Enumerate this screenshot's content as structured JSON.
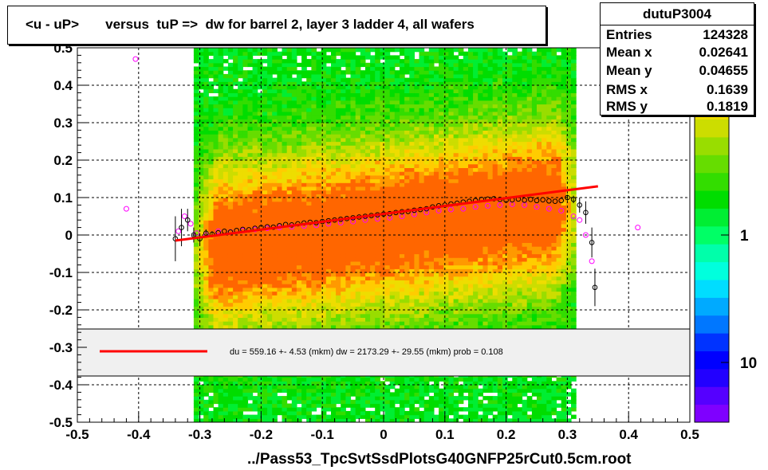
{
  "chart_data": {
    "type": "heatmap",
    "title": "<u - uP>       versus  tuP =>  dw for barrel 2, layer 3 ladder 4, all wafers",
    "xlim": [
      -0.5,
      0.5
    ],
    "ylim": [
      -0.5,
      0.5
    ],
    "x_ticks": [
      "-0.5",
      "-0.4",
      "-0.3",
      "-0.2",
      "-0.1",
      "0",
      "0.1",
      "0.2",
      "0.3",
      "0.4",
      "0.5"
    ],
    "y_ticks": [
      "-0.5",
      "-0.4",
      "-0.3",
      "-0.2",
      "-0.1",
      "0",
      "0.1",
      "0.2",
      "0.3",
      "0.4",
      "0.5"
    ],
    "grid": true,
    "colorbar": {
      "scale": "log",
      "labels": [
        "1",
        "10"
      ],
      "colors": [
        "#7f00ff",
        "#5500ff",
        "#2200ff",
        "#0000ff",
        "#0033ff",
        "#0077ff",
        "#00aaff",
        "#00ddff",
        "#00ffdd",
        "#00ffaa",
        "#00ff66",
        "#00ee33",
        "#00dd00",
        "#33dd00",
        "#66dd00",
        "#99dd00",
        "#ccdd00",
        "#eedd00",
        "#ffcc00",
        "#ff9900",
        "#ff6600"
      ]
    },
    "density": {
      "x_range": [
        -0.31,
        0.31
      ],
      "y_range": [
        -0.5,
        0.5
      ],
      "trend_slope": 0.2,
      "note_band_center": 0.02
    },
    "fit_line": {
      "x": [
        -0.34,
        0.35
      ],
      "y": [
        -0.015,
        0.13
      ],
      "color": "#ff0000"
    },
    "profile_black": {
      "x": [
        -0.34,
        -0.33,
        -0.32,
        -0.31,
        -0.3,
        -0.29,
        -0.28,
        -0.27,
        -0.26,
        -0.25,
        -0.24,
        -0.23,
        -0.22,
        -0.21,
        -0.2,
        -0.19,
        -0.18,
        -0.17,
        -0.16,
        -0.15,
        -0.14,
        -0.13,
        -0.12,
        -0.11,
        -0.1,
        -0.09,
        -0.08,
        -0.07,
        -0.06,
        -0.05,
        -0.04,
        -0.03,
        -0.02,
        -0.01,
        0.0,
        0.01,
        0.02,
        0.03,
        0.04,
        0.05,
        0.06,
        0.07,
        0.08,
        0.09,
        0.1,
        0.11,
        0.12,
        0.13,
        0.14,
        0.15,
        0.16,
        0.17,
        0.18,
        0.19,
        0.2,
        0.21,
        0.22,
        0.23,
        0.24,
        0.25,
        0.26,
        0.27,
        0.28,
        0.29,
        0.3,
        0.31,
        0.32,
        0.33,
        0.34,
        0.345
      ],
      "y": [
        -0.01,
        0.02,
        0.04,
        0.0,
        -0.01,
        0.005,
        0.002,
        0.006,
        0.01,
        0.008,
        0.012,
        0.015,
        0.014,
        0.018,
        0.02,
        0.022,
        0.021,
        0.025,
        0.028,
        0.027,
        0.03,
        0.032,
        0.034,
        0.033,
        0.036,
        0.038,
        0.04,
        0.042,
        0.044,
        0.046,
        0.048,
        0.05,
        0.052,
        0.054,
        0.056,
        0.057,
        0.06,
        0.062,
        0.063,
        0.066,
        0.068,
        0.07,
        0.075,
        0.078,
        0.08,
        0.083,
        0.085,
        0.088,
        0.09,
        0.092,
        0.095,
        0.096,
        0.097,
        0.095,
        0.093,
        0.094,
        0.096,
        0.093,
        0.095,
        0.092,
        0.094,
        0.091,
        0.09,
        0.092,
        0.1,
        0.095,
        0.08,
        0.06,
        -0.02,
        -0.14
      ],
      "err": [
        0.06,
        0.05,
        0.03,
        0.02,
        0.015,
        0.01,
        0.008,
        0.006,
        0.005,
        0.005,
        0.004,
        0.004,
        0.004,
        0.004,
        0.004,
        0.004,
        0.004,
        0.004,
        0.004,
        0.004,
        0.004,
        0.004,
        0.004,
        0.004,
        0.004,
        0.004,
        0.004,
        0.004,
        0.004,
        0.004,
        0.004,
        0.004,
        0.004,
        0.004,
        0.004,
        0.004,
        0.004,
        0.004,
        0.004,
        0.004,
        0.004,
        0.004,
        0.004,
        0.004,
        0.004,
        0.004,
        0.004,
        0.004,
        0.004,
        0.004,
        0.004,
        0.004,
        0.004,
        0.004,
        0.004,
        0.004,
        0.004,
        0.004,
        0.004,
        0.004,
        0.004,
        0.004,
        0.005,
        0.006,
        0.008,
        0.01,
        0.02,
        0.03,
        0.04,
        0.05
      ]
    },
    "profile_magenta": {
      "x": [
        -0.42,
        -0.405,
        -0.335,
        -0.325,
        -0.315,
        -0.305,
        -0.29,
        -0.27,
        -0.25,
        -0.23,
        -0.21,
        -0.19,
        -0.17,
        -0.15,
        -0.13,
        -0.11,
        -0.09,
        -0.07,
        -0.05,
        -0.03,
        -0.01,
        0.01,
        0.03,
        0.05,
        0.07,
        0.09,
        0.11,
        0.13,
        0.15,
        0.17,
        0.19,
        0.21,
        0.23,
        0.25,
        0.27,
        0.29,
        0.31,
        0.32,
        0.33,
        0.34,
        0.415
      ],
      "y": [
        0.07,
        0.47,
        0.01,
        0.05,
        0.03,
        0.005,
        0.0,
        0.01,
        0.008,
        0.012,
        0.015,
        0.018,
        0.02,
        0.022,
        0.024,
        0.026,
        0.03,
        0.033,
        0.036,
        0.04,
        0.043,
        0.046,
        0.05,
        0.055,
        0.06,
        0.065,
        0.068,
        0.07,
        0.075,
        0.078,
        0.08,
        0.082,
        0.08,
        0.075,
        0.07,
        0.065,
        0.05,
        0.04,
        0.0,
        -0.07,
        0.02
      ]
    }
  },
  "legend": {
    "fit_text": "du =  559.16 +-  4.53 (mkm) dw = 2173.29 +- 29.55 (mkm) prob = 0.108"
  },
  "stats": {
    "name": "dutuP3004",
    "rows": [
      {
        "label": "Entries",
        "value": "124328"
      },
      {
        "label": "Mean x",
        "value": "0.02641"
      },
      {
        "label": "Mean y",
        "value": "0.04655"
      },
      {
        "label": "RMS x",
        "value": "0.1639"
      },
      {
        "label": "RMS y",
        "value": "0.1819"
      }
    ]
  },
  "footer": "../Pass53_TpcSvtSsdPlotsG40GNFP25rCut0.5cm.root"
}
